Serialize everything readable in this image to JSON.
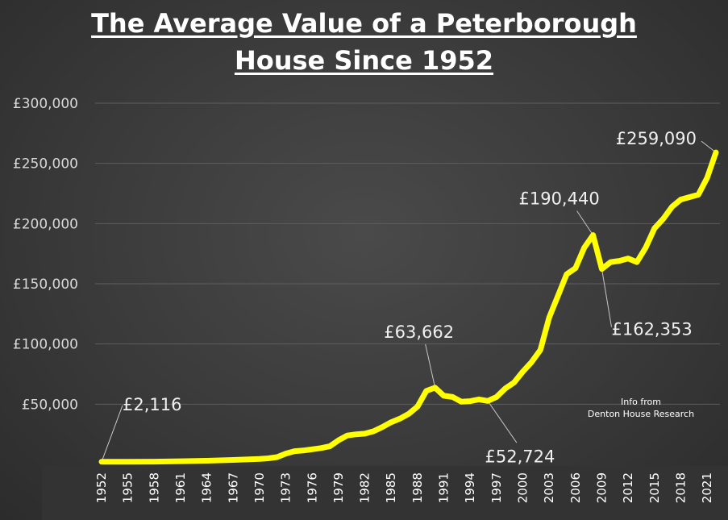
{
  "chart_data": {
    "type": "line",
    "title_line1": "The Average Value of a Peterborough",
    "title_line2": "House Since 1952",
    "xlabel": "",
    "ylabel": "",
    "ylim": [
      0,
      300000
    ],
    "yticks": [
      0,
      50000,
      100000,
      150000,
      200000,
      250000,
      300000
    ],
    "ytick_labels": [
      "",
      "£50,000",
      "£100,000",
      "£150,000",
      "£200,000",
      "£250,000",
      "£300,000"
    ],
    "xlim": [
      1952,
      2022
    ],
    "xticks": [
      1952,
      1955,
      1958,
      1961,
      1964,
      1967,
      1970,
      1973,
      1976,
      1979,
      1982,
      1985,
      1988,
      1991,
      1994,
      1997,
      2000,
      2003,
      2006,
      2009,
      2012,
      2015,
      2018,
      2021
    ],
    "grid": true,
    "line_color": "#ffff00",
    "series": [
      {
        "points": [
          [
            1952,
            2116
          ],
          [
            1955,
            2200
          ],
          [
            1958,
            2300
          ],
          [
            1961,
            2600
          ],
          [
            1964,
            3000
          ],
          [
            1967,
            3700
          ],
          [
            1970,
            4500
          ],
          [
            1971,
            5000
          ],
          [
            1972,
            6000
          ],
          [
            1973,
            9000
          ],
          [
            1974,
            11000
          ],
          [
            1975,
            11500
          ],
          [
            1976,
            12500
          ],
          [
            1977,
            13500
          ],
          [
            1978,
            15000
          ],
          [
            1979,
            20000
          ],
          [
            1980,
            24000
          ],
          [
            1981,
            25000
          ],
          [
            1982,
            25500
          ],
          [
            1983,
            27500
          ],
          [
            1984,
            31000
          ],
          [
            1985,
            35000
          ],
          [
            1986,
            38000
          ],
          [
            1987,
            42000
          ],
          [
            1988,
            48000
          ],
          [
            1989,
            61000
          ],
          [
            1990,
            63662
          ],
          [
            1991,
            57000
          ],
          [
            1992,
            56000
          ],
          [
            1993,
            52000
          ],
          [
            1994,
            52500
          ],
          [
            1995,
            54000
          ],
          [
            1996,
            52724
          ],
          [
            1997,
            56000
          ],
          [
            1998,
            63000
          ],
          [
            1999,
            68000
          ],
          [
            2000,
            77000
          ],
          [
            2001,
            85000
          ],
          [
            2002,
            95000
          ],
          [
            2003,
            122000
          ],
          [
            2004,
            140000
          ],
          [
            2005,
            158000
          ],
          [
            2006,
            163000
          ],
          [
            2007,
            180000
          ],
          [
            2008,
            190440
          ],
          [
            2009,
            162353
          ],
          [
            2010,
            168000
          ],
          [
            2011,
            169000
          ],
          [
            2012,
            171000
          ],
          [
            2013,
            168000
          ],
          [
            2014,
            180000
          ],
          [
            2015,
            196000
          ],
          [
            2016,
            204000
          ],
          [
            2017,
            214000
          ],
          [
            2018,
            220000
          ],
          [
            2019,
            222000
          ],
          [
            2020,
            224000
          ],
          [
            2021,
            238000
          ],
          [
            2022,
            259090
          ]
        ]
      }
    ],
    "annotations": [
      {
        "text": "£2,116",
        "x": 1952,
        "y": 2116
      },
      {
        "text": "£63,662",
        "x": 1990,
        "y": 63662
      },
      {
        "text": "£52,724",
        "x": 1996,
        "y": 52724
      },
      {
        "text": "£190,440",
        "x": 2008,
        "y": 190440
      },
      {
        "text": "£162,353",
        "x": 2009,
        "y": 162353
      },
      {
        "text": "£259,090",
        "x": 2022,
        "y": 259090
      }
    ],
    "note_line1": "Info from",
    "note_line2": "Denton House Research"
  }
}
